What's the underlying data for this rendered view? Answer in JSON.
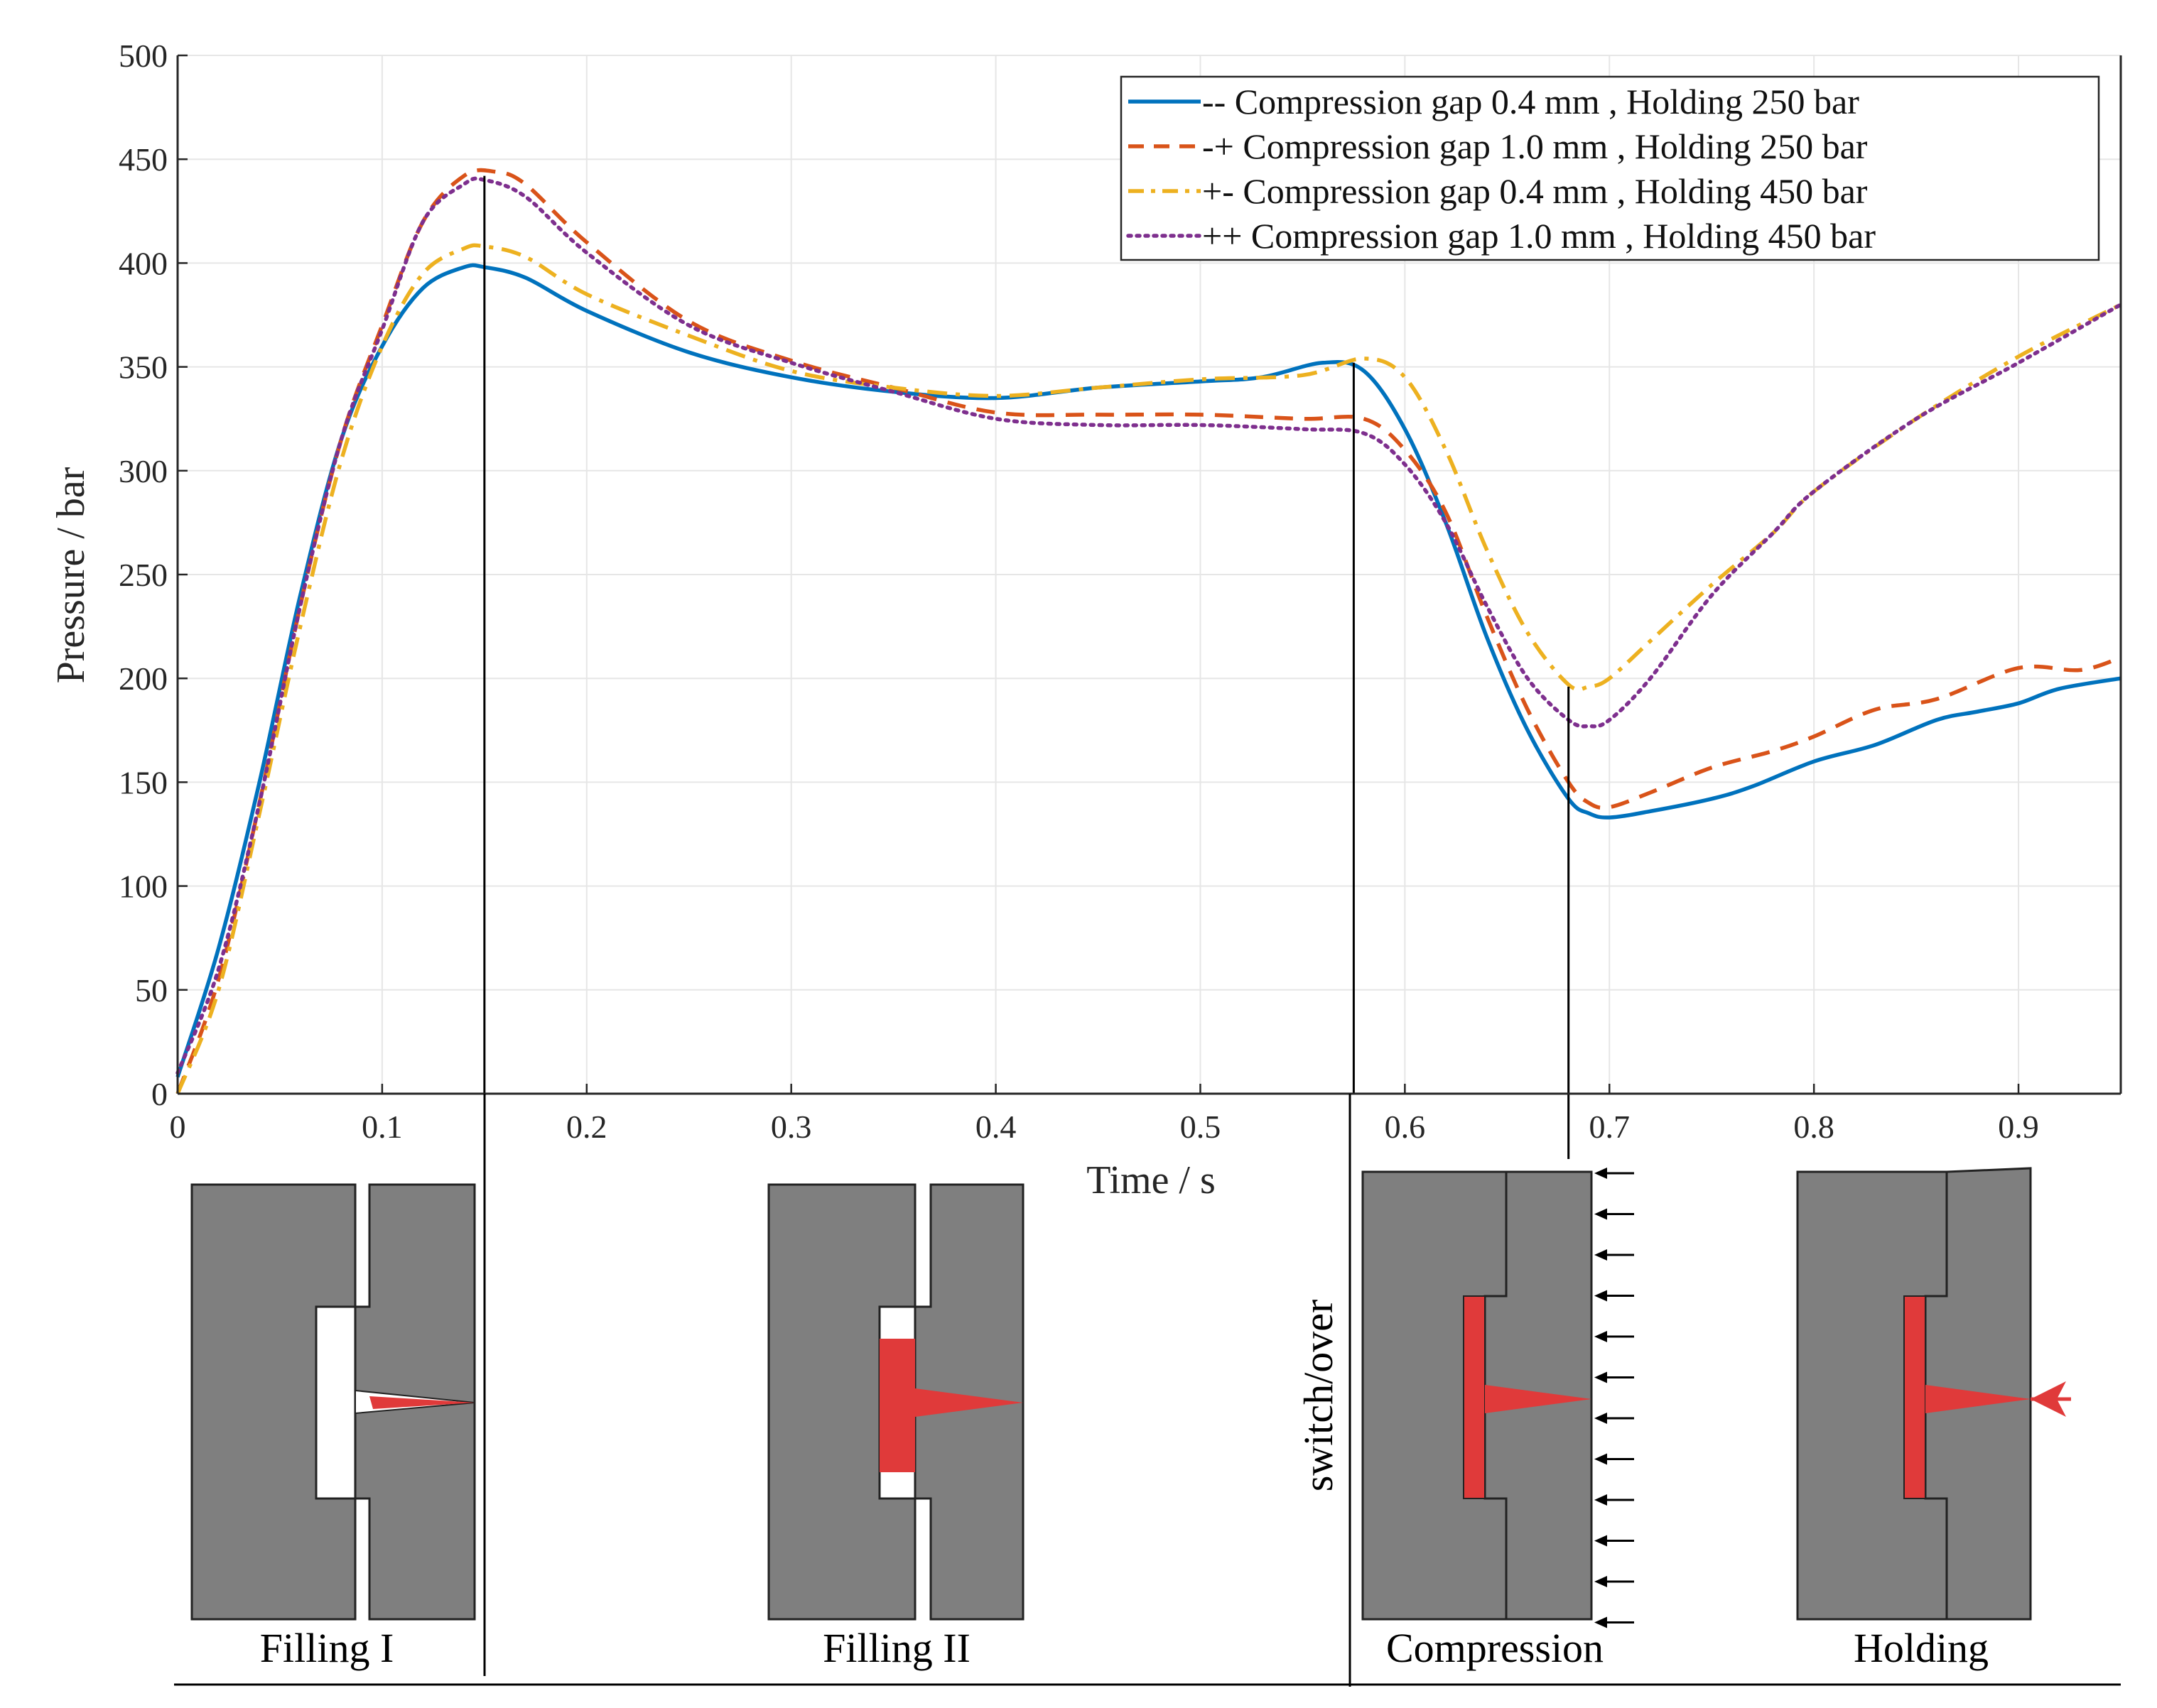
{
  "chart_data": {
    "type": "line",
    "xlabel": "Time / s",
    "ylabel": "Pressure / bar",
    "xlim": [
      0,
      0.95
    ],
    "ylim": [
      0,
      500
    ],
    "xticks": [
      0,
      0.1,
      0.2,
      0.3,
      0.4,
      0.5,
      0.6,
      0.7,
      0.8,
      0.9
    ],
    "xtick_labels": [
      "0",
      "0.1",
      "0.2",
      "0.3",
      "0.4",
      "0.5",
      "0.6",
      "0.7",
      "0.8",
      "0.9"
    ],
    "yticks": [
      0,
      50,
      100,
      150,
      200,
      250,
      300,
      350,
      400,
      450,
      500
    ],
    "ytick_labels": [
      "0",
      "50",
      "100",
      "150",
      "200",
      "250",
      "300",
      "350",
      "400",
      "450",
      "500"
    ],
    "grid": true,
    "legend_position": "top-right",
    "phase_markers_x": [
      0.15,
      0.575,
      0.68
    ],
    "series": [
      {
        "name": "-- Compression gap 0.4 mm , Holding 250 bar",
        "color": "#0072BD",
        "style": "solid",
        "x": [
          0,
          0.02,
          0.04,
          0.06,
          0.08,
          0.1,
          0.12,
          0.14,
          0.15,
          0.17,
          0.2,
          0.25,
          0.3,
          0.35,
          0.4,
          0.45,
          0.5,
          0.53,
          0.56,
          0.58,
          0.6,
          0.62,
          0.64,
          0.66,
          0.68,
          0.69,
          0.7,
          0.72,
          0.75,
          0.77,
          0.8,
          0.83,
          0.86,
          0.88,
          0.9,
          0.92,
          0.95
        ],
        "values": [
          8,
          70,
          150,
          240,
          315,
          360,
          388,
          398,
          398,
          393,
          377,
          357,
          345,
          338,
          335,
          340,
          343,
          345,
          352,
          348,
          320,
          275,
          220,
          175,
          142,
          135,
          133,
          136,
          142,
          148,
          160,
          168,
          180,
          184,
          188,
          195,
          200
        ]
      },
      {
        "name": "-+ Compression gap 1.0 mm , Holding 250 bar",
        "color": "#D95319",
        "style": "dashed",
        "x": [
          0,
          0.02,
          0.04,
          0.06,
          0.08,
          0.1,
          0.12,
          0.14,
          0.155,
          0.17,
          0.2,
          0.25,
          0.3,
          0.35,
          0.4,
          0.45,
          0.5,
          0.55,
          0.58,
          0.6,
          0.62,
          0.64,
          0.66,
          0.68,
          0.69,
          0.7,
          0.72,
          0.75,
          0.78,
          0.8,
          0.83,
          0.86,
          0.9,
          0.93,
          0.95
        ],
        "values": [
          0,
          55,
          140,
          235,
          315,
          370,
          420,
          442,
          444,
          438,
          410,
          372,
          353,
          340,
          328,
          327,
          327,
          325,
          325,
          310,
          280,
          230,
          185,
          150,
          140,
          138,
          145,
          157,
          165,
          172,
          185,
          190,
          205,
          204,
          210
        ]
      },
      {
        "name": "+- Compression gap 0.4 mm , Holding 450 bar",
        "color": "#EDB120",
        "style": "dashdot",
        "x": [
          0,
          0.02,
          0.04,
          0.06,
          0.08,
          0.1,
          0.12,
          0.14,
          0.15,
          0.17,
          0.2,
          0.25,
          0.3,
          0.35,
          0.4,
          0.45,
          0.5,
          0.55,
          0.58,
          0.6,
          0.62,
          0.64,
          0.66,
          0.68,
          0.69,
          0.7,
          0.72,
          0.75,
          0.78,
          0.8,
          0.85,
          0.9,
          0.95
        ],
        "values": [
          0,
          50,
          135,
          225,
          305,
          360,
          395,
          407,
          408,
          403,
          385,
          365,
          348,
          340,
          336,
          340,
          344,
          346,
          354,
          345,
          310,
          262,
          222,
          197,
          196,
          200,
          218,
          245,
          270,
          290,
          325,
          355,
          380
        ]
      },
      {
        "name": "++ Compression gap 1.0 mm , Holding 450 bar",
        "color": "#7E2F8E",
        "style": "dotted",
        "x": [
          0,
          0.02,
          0.04,
          0.06,
          0.08,
          0.1,
          0.12,
          0.14,
          0.15,
          0.17,
          0.2,
          0.25,
          0.3,
          0.35,
          0.4,
          0.45,
          0.5,
          0.55,
          0.58,
          0.6,
          0.62,
          0.64,
          0.66,
          0.68,
          0.69,
          0.7,
          0.72,
          0.75,
          0.78,
          0.8,
          0.85,
          0.9,
          0.95
        ],
        "values": [
          10,
          60,
          140,
          235,
          315,
          368,
          420,
          438,
          440,
          432,
          405,
          370,
          352,
          338,
          325,
          322,
          322,
          320,
          318,
          303,
          275,
          235,
          200,
          180,
          177,
          180,
          200,
          240,
          270,
          290,
          325,
          352,
          380
        ]
      }
    ]
  },
  "annotations": {
    "switchover_label": "switch/over",
    "stages": [
      {
        "label": "Filling I"
      },
      {
        "label": "Filling II"
      },
      {
        "label": "Compression"
      },
      {
        "label": "Holding"
      }
    ]
  },
  "colors": {
    "mold_gray": "#7f7f7f",
    "melt_red": "#e03a3a",
    "grid": "#e6e6e6",
    "axis": "#262626"
  }
}
